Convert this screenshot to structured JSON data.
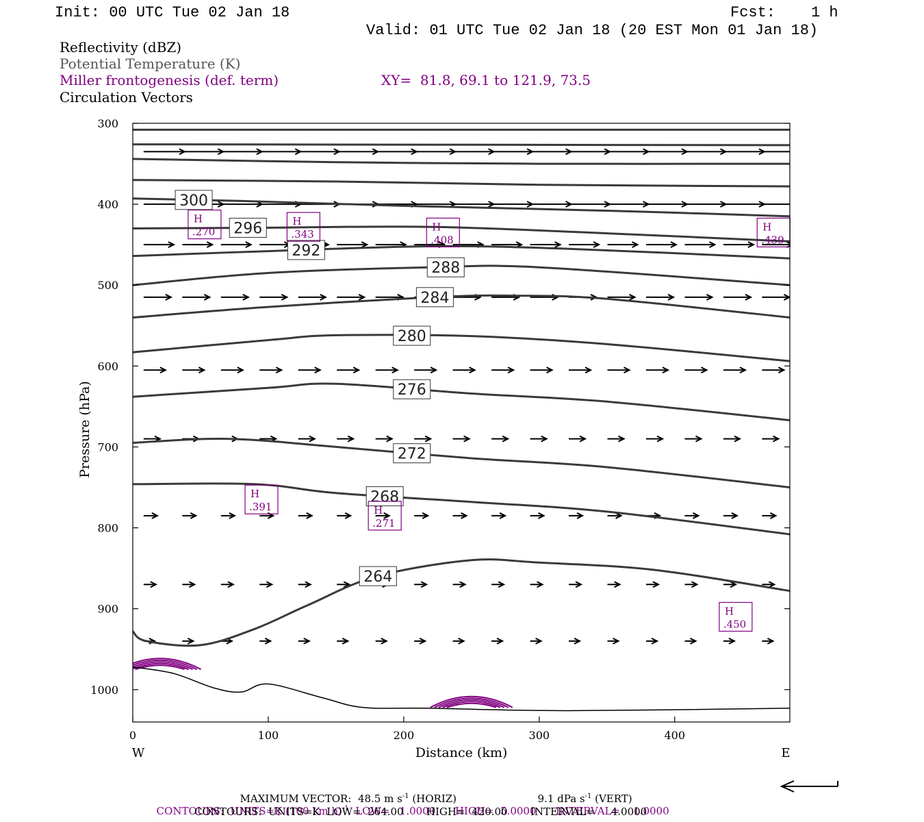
{
  "header": {
    "init": "Init: 00 UTC Tue 02 Jan 18",
    "fcst_label": "Fcst:",
    "fcst_value": "1 h",
    "valid": "Valid: 01 UTC Tue 02 Jan 18 (20 EST Mon 01 Jan 18)"
  },
  "legend": {
    "reflectivity": "Reflectivity (dBZ)",
    "theta": "Potential Temperature (K)",
    "frontogenesis": "Miller frontogenesis (def. term)",
    "xy": "XY=  81.8, 69.1 to 121.9, 73.5",
    "vectors": "Circulation Vectors"
  },
  "footer": {
    "max_vector_label": "MAXIMUM VECTOR:",
    "max_vector_horiz_value": "48.5 m s",
    "max_vector_horiz_exp": "-1",
    "max_vector_horiz_tail": " (HORIZ)",
    "max_vector_vert_value": "9.1 dPa s",
    "max_vector_vert_exp": "-1",
    "max_vector_vert_tail": " (VERT)",
    "contours1_a": "CONTOURS:  UNITS=K (100 km h)",
    "contours1_exp": "-1",
    "contours1_b": "  LOW=   1.0000      HIGH=  5.0000      INTERVAL=    1.0000",
    "contours2": "CONTOURS:  UNITS=K  LOW=  264.00       HIGH=  420.00       INTERVAL=     4.0000"
  },
  "colors": {
    "theta": "#3a3a3a",
    "frontogenesis": "#800080",
    "vectors": "#000000",
    "terrain": "#000000"
  },
  "chart_data": {
    "type": "line",
    "xlabel": "Distance (km)",
    "ylabel": "Pressure (hPa)",
    "xlim": [
      0,
      485
    ],
    "ylim": [
      1040,
      300
    ],
    "y_scale": "linear",
    "x_ticks": [
      "0",
      "100",
      "200",
      "300",
      "400"
    ],
    "y_ticks": [
      "300",
      "400",
      "500",
      "600",
      "700",
      "800",
      "900",
      "1000"
    ],
    "x_tick_values": [
      0,
      100,
      200,
      300,
      400
    ],
    "y_tick_values": [
      300,
      400,
      500,
      600,
      700,
      800,
      900,
      1000
    ],
    "west_label": "W",
    "east_label": "E",
    "grid": false,
    "isentropes": [
      {
        "label": "",
        "points": [
          [
            0,
            308
          ],
          [
            485,
            308
          ]
        ]
      },
      {
        "label": "",
        "points": [
          [
            0,
            326
          ],
          [
            485,
            327
          ]
        ]
      },
      {
        "label": "",
        "points": [
          [
            0,
            344
          ],
          [
            150,
            348
          ],
          [
            300,
            350
          ],
          [
            485,
            350
          ]
        ]
      },
      {
        "label": "",
        "points": [
          [
            0,
            370
          ],
          [
            150,
            372
          ],
          [
            300,
            376
          ],
          [
            485,
            378
          ]
        ]
      },
      {
        "label": "300",
        "points": [
          [
            0,
            393
          ],
          [
            80,
            396
          ],
          [
            200,
            402
          ],
          [
            350,
            408
          ],
          [
            485,
            415
          ]
        ]
      },
      {
        "label": "296",
        "points": [
          [
            0,
            430
          ],
          [
            100,
            429
          ],
          [
            220,
            428
          ],
          [
            350,
            436
          ],
          [
            485,
            446
          ]
        ]
      },
      {
        "label": "292",
        "points": [
          [
            0,
            464
          ],
          [
            100,
            458
          ],
          [
            220,
            452
          ],
          [
            320,
            455
          ],
          [
            485,
            467
          ]
        ]
      },
      {
        "label": "288",
        "points": [
          [
            0,
            500
          ],
          [
            100,
            485
          ],
          [
            220,
            478
          ],
          [
            300,
            478
          ],
          [
            485,
            500
          ]
        ]
      },
      {
        "label": "284",
        "points": [
          [
            0,
            540
          ],
          [
            100,
            527
          ],
          [
            220,
            515
          ],
          [
            280,
            513
          ],
          [
            350,
            517
          ],
          [
            485,
            540
          ]
        ]
      },
      {
        "label": "280",
        "points": [
          [
            0,
            583
          ],
          [
            100,
            568
          ],
          [
            150,
            562
          ],
          [
            250,
            563
          ],
          [
            350,
            573
          ],
          [
            485,
            594
          ]
        ]
      },
      {
        "label": "276",
        "points": [
          [
            0,
            638
          ],
          [
            100,
            627
          ],
          [
            150,
            622
          ],
          [
            250,
            634
          ],
          [
            350,
            644
          ],
          [
            485,
            667
          ]
        ]
      },
      {
        "label": "272",
        "points": [
          [
            0,
            695
          ],
          [
            70,
            690
          ],
          [
            150,
            700
          ],
          [
            250,
            714
          ],
          [
            350,
            725
          ],
          [
            485,
            750
          ]
        ]
      },
      {
        "label": "268",
        "points": [
          [
            0,
            746
          ],
          [
            90,
            746
          ],
          [
            150,
            757
          ],
          [
            250,
            768
          ],
          [
            350,
            780
          ],
          [
            485,
            808
          ]
        ]
      },
      {
        "label": "264",
        "points": [
          [
            0,
            928
          ],
          [
            10,
            940
          ],
          [
            50,
            945
          ],
          [
            90,
            925
          ],
          [
            130,
            895
          ],
          [
            180,
            860
          ],
          [
            250,
            840
          ],
          [
            300,
            843
          ],
          [
            385,
            852
          ],
          [
            485,
            878
          ]
        ]
      }
    ],
    "frontogenesis_maxima": [
      {
        "label": "H",
        "value": ".270",
        "x": 53,
        "p": 425
      },
      {
        "label": "H",
        "value": ".343",
        "x": 126,
        "p": 428
      },
      {
        "label": "H",
        "value": ".408",
        "x": 229,
        "p": 435
      },
      {
        "label": "H",
        "value": ".439",
        "x": 473,
        "p": 435
      },
      {
        "label": "H",
        "value": ".391",
        "x": 95,
        "p": 765
      },
      {
        "label": "H",
        "value": ".271",
        "x": 186,
        "p": 785
      },
      {
        "label": "H",
        "value": ".450",
        "x": 445,
        "p": 910
      }
    ],
    "terrain": [
      [
        0,
        972
      ],
      [
        30,
        980
      ],
      [
        60,
        998
      ],
      [
        80,
        1003
      ],
      [
        100,
        993
      ],
      [
        140,
        1010
      ],
      [
        170,
        1022
      ],
      [
        220,
        1023
      ],
      [
        320,
        1026
      ],
      [
        485,
        1023
      ]
    ],
    "vector_rows": [
      {
        "p": 335,
        "u": [
          30,
          30,
          30,
          30,
          30,
          30,
          30,
          30,
          30,
          30,
          30,
          30,
          30,
          30,
          30,
          30,
          30,
          30
        ],
        "w": [
          0,
          0,
          0,
          0,
          0,
          0,
          0,
          0,
          0,
          0,
          0,
          0,
          0,
          0,
          0,
          0,
          0,
          0
        ]
      },
      {
        "p": 400,
        "u": [
          30,
          30,
          30,
          30,
          30,
          30,
          30,
          30,
          30,
          30,
          30,
          30,
          30,
          30,
          30,
          30,
          30,
          30
        ],
        "w": [
          0,
          0,
          0,
          0,
          0,
          0,
          0,
          0,
          0,
          0,
          0,
          0,
          0,
          0,
          0,
          0,
          0,
          0
        ]
      },
      {
        "p": 450,
        "u": [
          22,
          22,
          22,
          22,
          22,
          22,
          22,
          22,
          22,
          22,
          22,
          22,
          22,
          22,
          22,
          22,
          22,
          22
        ],
        "w": [
          0,
          0,
          0,
          0,
          0,
          0,
          0,
          0,
          0,
          0,
          0,
          0,
          0,
          0,
          0,
          0,
          0,
          0
        ]
      },
      {
        "p": 515,
        "u": [
          20,
          20,
          20,
          20,
          20,
          20,
          20,
          20,
          20,
          20,
          20,
          20,
          20,
          20,
          20,
          20,
          20,
          20
        ],
        "w": [
          0,
          0,
          0,
          0,
          0,
          0,
          0,
          0,
          0,
          0,
          0,
          0,
          0,
          0,
          0,
          0,
          0,
          0
        ]
      },
      {
        "p": 605,
        "u": [
          16,
          16,
          16,
          16,
          16,
          16,
          16,
          16,
          16,
          16,
          16,
          16,
          16,
          16,
          16,
          16,
          16,
          16
        ],
        "w": [
          0,
          0,
          0,
          0,
          0,
          0,
          0,
          0,
          0,
          0,
          0,
          0,
          0,
          0,
          0,
          0,
          0,
          0
        ]
      },
      {
        "p": 690,
        "u": [
          12,
          12,
          12,
          12,
          12,
          12,
          12,
          12,
          12,
          12,
          12,
          12,
          12,
          12,
          12,
          12,
          12,
          12
        ],
        "w": [
          0,
          0,
          0,
          0,
          0,
          0,
          0,
          0,
          0,
          0,
          0,
          0,
          0,
          0,
          0,
          0,
          0,
          0
        ]
      },
      {
        "p": 785,
        "u": [
          10,
          10,
          10,
          10,
          10,
          10,
          10,
          10,
          10,
          10,
          10,
          10,
          10,
          10,
          10,
          10,
          10,
          10
        ],
        "w": [
          0,
          0,
          0,
          0,
          0,
          0,
          0,
          0,
          0,
          0,
          0,
          0,
          0,
          0,
          0,
          0,
          0,
          0
        ]
      },
      {
        "p": 870,
        "u": [
          9,
          9,
          9,
          9,
          9,
          9,
          9,
          9,
          9,
          9,
          9,
          9,
          9,
          9,
          9,
          9,
          9,
          9
        ],
        "w": [
          0,
          0,
          0,
          0,
          0,
          0,
          0,
          0,
          0,
          0,
          0,
          0,
          0,
          0,
          0,
          0,
          0,
          0
        ]
      },
      {
        "p": 940,
        "u": [
          8,
          8,
          8,
          8,
          8,
          8,
          8,
          8,
          8,
          8,
          8,
          8,
          8,
          8,
          8,
          8,
          8,
          8
        ],
        "w": [
          0,
          0,
          0,
          0,
          0,
          0,
          0,
          0,
          0,
          0,
          0,
          0,
          0,
          0,
          0,
          0,
          0,
          0
        ]
      }
    ],
    "reflectivity_contours": [
      {
        "x_center": 20,
        "p_base": 975
      },
      {
        "x_center": 250,
        "p_base": 1022
      }
    ]
  }
}
